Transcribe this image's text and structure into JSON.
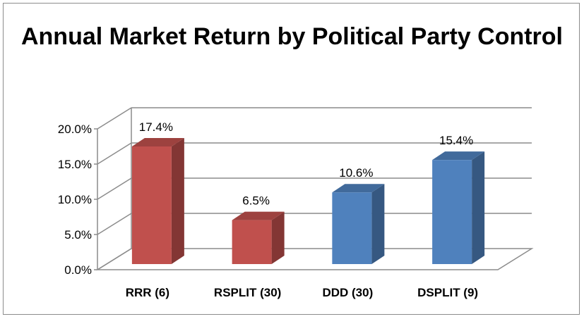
{
  "chart_data": {
    "type": "bar",
    "title": "Annual Market Return by Political Party Control",
    "categories": [
      "RRR (6)",
      "RSPLIT (30)",
      "DDD (30)",
      "DSPLIT (9)"
    ],
    "values": [
      17.4,
      6.5,
      10.6,
      15.4
    ],
    "data_labels": [
      "17.4%",
      "6.5%",
      "10.6%",
      "15.4%"
    ],
    "colors": [
      "#c0504d",
      "#c0504d",
      "#4f81bd",
      "#4f81bd"
    ],
    "ylim": [
      0,
      20
    ],
    "yticks": [
      "0.0%",
      "5.0%",
      "10.0%",
      "15.0%",
      "20.0%"
    ],
    "xlabel": "",
    "ylabel": "",
    "grid": true,
    "legend": "none"
  }
}
